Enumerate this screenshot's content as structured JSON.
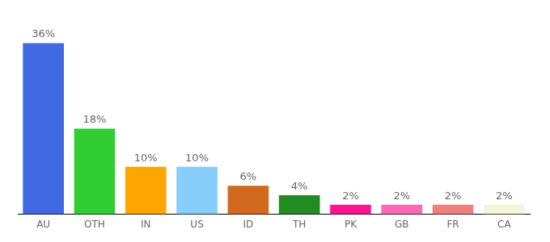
{
  "chart_data": {
    "type": "bar",
    "categories": [
      "AU",
      "OTH",
      "IN",
      "US",
      "ID",
      "TH",
      "PK",
      "GB",
      "FR",
      "CA"
    ],
    "values": [
      36,
      18,
      10,
      10,
      6,
      4,
      2,
      2,
      2,
      2
    ],
    "value_labels": [
      "36%",
      "18%",
      "10%",
      "10%",
      "6%",
      "4%",
      "2%",
      "2%",
      "2%",
      "2%"
    ],
    "colors": [
      "#4169e1",
      "#32cd32",
      "#ffa500",
      "#87cefa",
      "#d2691e",
      "#228b22",
      "#ff1493",
      "#ff69b4",
      "#f08080",
      "#f5f5dc"
    ],
    "data_labels": true,
    "tick_labels": "x",
    "grid": false
  }
}
